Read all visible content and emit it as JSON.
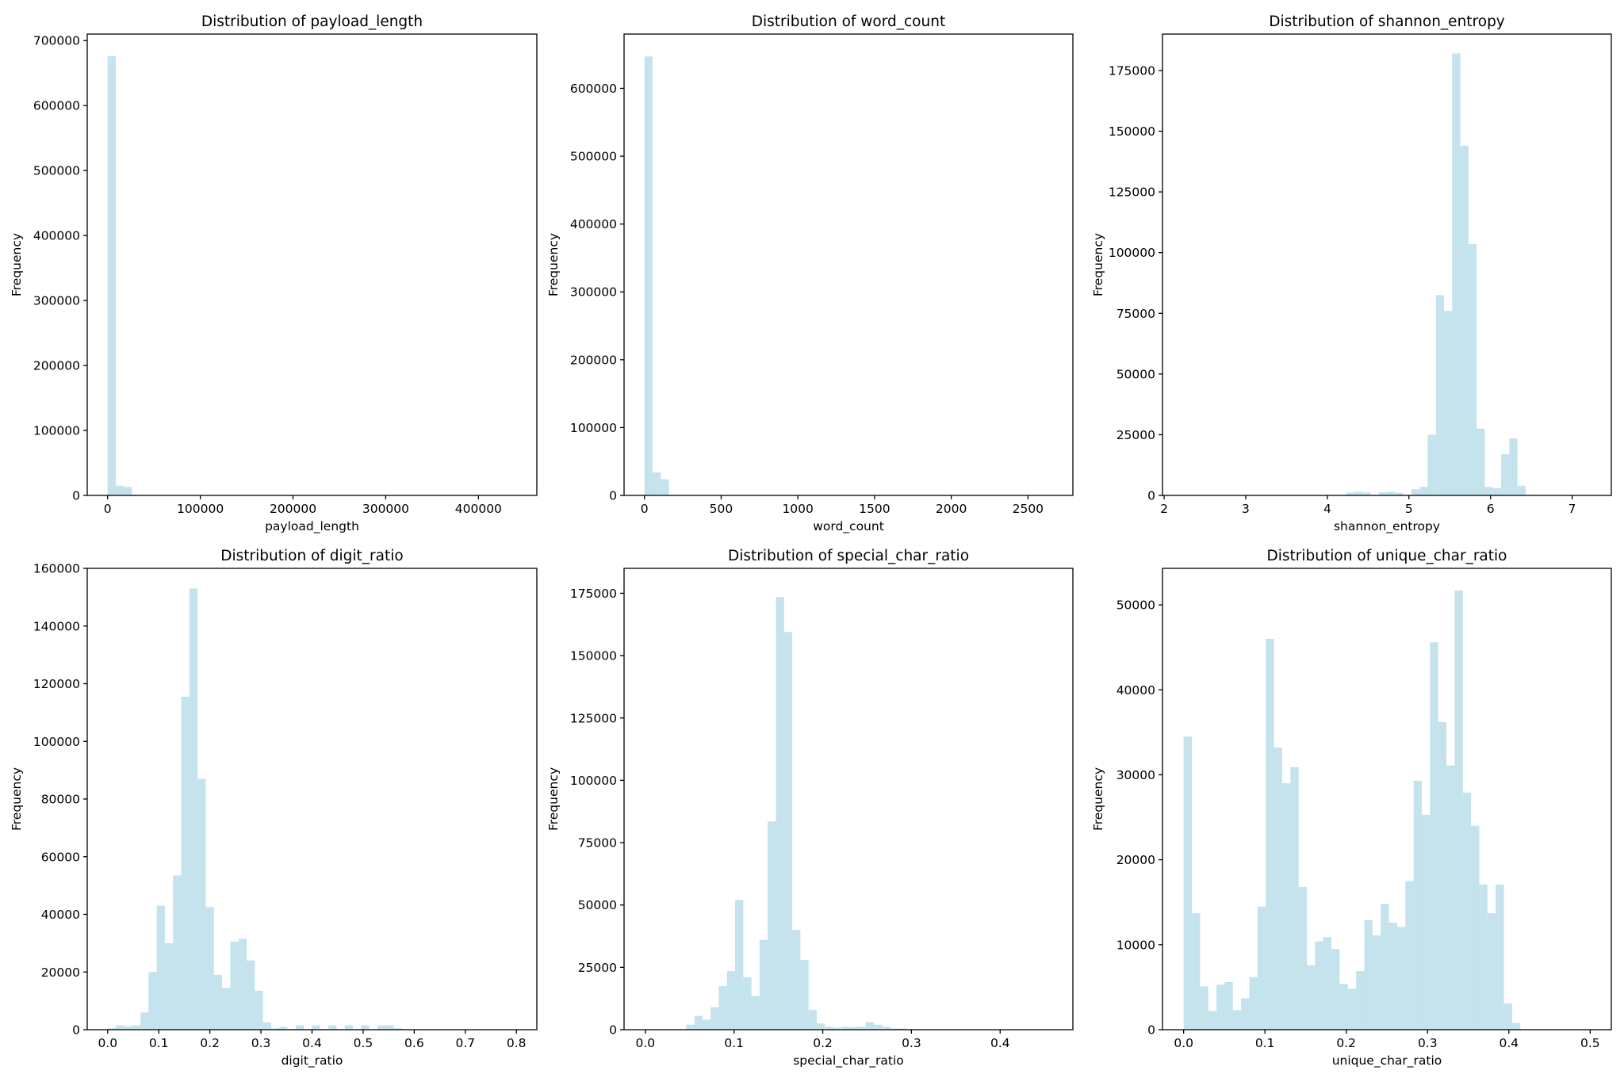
{
  "style": {
    "bar_color": "#add8e6",
    "bar_opacity": 0.72
  },
  "chart_data": [
    {
      "type": "bar",
      "title": "Distribution of payload_length",
      "xlabel": "payload_length",
      "ylabel": "Frequency",
      "xlim": [
        -22000,
        463000
      ],
      "ylim": [
        0,
        710000
      ],
      "xticks": [
        0,
        100000,
        200000,
        300000,
        400000
      ],
      "xtick_labels": [
        "0",
        "100000",
        "200000",
        "300000",
        "400000"
      ],
      "yticks": [
        0,
        100000,
        200000,
        300000,
        400000,
        500000,
        600000,
        700000
      ],
      "ytick_labels": [
        "0",
        "100000",
        "200000",
        "300000",
        "400000",
        "500000",
        "600000",
        "700000"
      ],
      "bin_start": 0,
      "bin_width": 8800,
      "values": [
        676000,
        15000,
        13000,
        1200,
        700,
        500,
        400,
        300,
        250,
        200,
        150,
        120,
        100,
        90,
        80,
        70,
        60,
        50,
        40,
        40,
        30,
        30,
        30,
        20,
        20,
        20,
        20,
        10,
        10,
        10,
        10,
        10,
        10,
        10,
        10,
        10,
        10,
        10,
        10,
        10,
        10,
        10,
        10,
        10,
        10,
        10,
        10,
        10,
        10,
        10
      ]
    },
    {
      "type": "bar",
      "title": "Distribution of word_count",
      "xlabel": "word_count",
      "ylabel": "Frequency",
      "xlim": [
        -133,
        2793
      ],
      "ylim": [
        0,
        680000
      ],
      "xticks": [
        0,
        500,
        1000,
        1500,
        2000,
        2500
      ],
      "xtick_labels": [
        "0",
        "500",
        "1000",
        "1500",
        "2000",
        "2500"
      ],
      "yticks": [
        0,
        100000,
        200000,
        300000,
        400000,
        500000,
        600000
      ],
      "ytick_labels": [
        "0",
        "100000",
        "200000",
        "300000",
        "400000",
        "500000",
        "600000"
      ],
      "bin_start": 0,
      "bin_width": 53.2,
      "values": [
        647000,
        34000,
        24000,
        1000,
        600,
        400,
        300,
        250,
        200,
        150,
        120,
        100,
        80,
        70,
        60,
        50,
        40,
        30,
        30,
        30,
        20,
        20,
        20,
        20,
        10,
        10,
        10,
        10,
        10,
        10,
        10,
        10,
        10,
        10,
        10,
        10,
        10,
        10,
        10,
        10,
        10,
        10,
        10,
        10,
        10,
        10,
        10,
        10,
        10,
        10
      ]
    },
    {
      "type": "bar",
      "title": "Distribution of shannon_entropy",
      "xlabel": "shannon_entropy",
      "ylabel": "Frequency",
      "xlim": [
        1.98,
        7.48
      ],
      "ylim": [
        0,
        190000
      ],
      "xticks": [
        2,
        3,
        4,
        5,
        6,
        7
      ],
      "xtick_labels": [
        "2",
        "3",
        "4",
        "5",
        "6",
        "7"
      ],
      "yticks": [
        0,
        25000,
        50000,
        75000,
        100000,
        125000,
        150000,
        175000
      ],
      "ytick_labels": [
        "0",
        "25000",
        "50000",
        "75000",
        "100000",
        "125000",
        "150000",
        "175000"
      ],
      "bin_start": 2.23,
      "bin_width": 0.1,
      "values": [
        50,
        0,
        0,
        50,
        0,
        0,
        0,
        0,
        0,
        50,
        0,
        50,
        0,
        50,
        0,
        50,
        0,
        50,
        0,
        50,
        1200,
        1500,
        1200,
        100,
        1300,
        1500,
        1100,
        200,
        2500,
        3500,
        25000,
        82500,
        76000,
        182000,
        144000,
        103500,
        27500,
        3500,
        3000,
        17000,
        23500,
        4000,
        100,
        50,
        50,
        50,
        50,
        50,
        50,
        50
      ]
    },
    {
      "type": "bar",
      "title": "Distribution of digit_ratio",
      "xlabel": "digit_ratio",
      "ylabel": "Frequency",
      "xlim": [
        -0.04,
        0.84
      ],
      "ylim": [
        0,
        160000
      ],
      "xticks": [
        0.0,
        0.1,
        0.2,
        0.3,
        0.4,
        0.5,
        0.6,
        0.7,
        0.8
      ],
      "xtick_labels": [
        "0.0",
        "0.1",
        "0.2",
        "0.3",
        "0.4",
        "0.5",
        "0.6",
        "0.7",
        "0.8"
      ],
      "yticks": [
        0,
        20000,
        40000,
        60000,
        80000,
        100000,
        120000,
        140000,
        160000
      ],
      "ytick_labels": [
        "0",
        "20000",
        "40000",
        "60000",
        "80000",
        "100000",
        "120000",
        "140000",
        "160000"
      ],
      "bin_start": 0,
      "bin_width": 0.016,
      "values": [
        500,
        1500,
        1200,
        1500,
        6000,
        20000,
        43000,
        30000,
        53500,
        115500,
        153000,
        87000,
        42500,
        19000,
        14500,
        30500,
        31500,
        24000,
        13500,
        2500,
        500,
        1000,
        200,
        1500,
        200,
        1500,
        200,
        1500,
        200,
        1500,
        200,
        1500,
        200,
        1500,
        1500,
        500,
        200,
        100,
        100,
        100,
        100,
        100,
        50,
        50,
        50,
        50,
        50,
        50,
        50,
        50
      ]
    },
    {
      "type": "bar",
      "title": "Distribution of special_char_ratio",
      "xlabel": "special_char_ratio",
      "ylabel": "Frequency",
      "xlim": [
        -0.024,
        0.482
      ],
      "ylim": [
        0,
        185000
      ],
      "xticks": [
        0.0,
        0.1,
        0.2,
        0.3,
        0.4
      ],
      "xtick_labels": [
        "0.0",
        "0.1",
        "0.2",
        "0.3",
        "0.4"
      ],
      "yticks": [
        0,
        25000,
        50000,
        75000,
        100000,
        125000,
        150000,
        175000
      ],
      "ytick_labels": [
        "0",
        "25000",
        "50000",
        "75000",
        "100000",
        "125000",
        "150000",
        "175000"
      ],
      "bin_start": 0,
      "bin_width": 0.0092,
      "values": [
        100,
        100,
        100,
        100,
        200,
        2000,
        5500,
        4000,
        9000,
        17500,
        23500,
        52000,
        21000,
        13500,
        36000,
        83500,
        173500,
        159500,
        40000,
        28000,
        8000,
        2500,
        1200,
        800,
        1200,
        1000,
        1200,
        3000,
        2000,
        1200,
        500,
        500,
        200,
        200,
        100,
        100,
        100,
        100,
        100,
        100,
        100,
        50,
        50,
        50,
        50,
        50,
        50,
        50,
        50,
        50
      ]
    },
    {
      "type": "bar",
      "title": "Distribution of unique_char_ratio",
      "xlabel": "unique_char_ratio",
      "ylabel": "Frequency",
      "xlim": [
        -0.026,
        0.526
      ],
      "ylim": [
        0,
        54300
      ],
      "xticks": [
        0.0,
        0.1,
        0.2,
        0.3,
        0.4,
        0.5
      ],
      "xtick_labels": [
        "0.0",
        "0.1",
        "0.2",
        "0.3",
        "0.4",
        "0.5"
      ],
      "yticks": [
        0,
        10000,
        20000,
        30000,
        40000,
        50000
      ],
      "ytick_labels": [
        "0",
        "10000",
        "20000",
        "30000",
        "40000",
        "50000"
      ],
      "bin_start": 0,
      "bin_width": 0.0101,
      "values": [
        34500,
        13700,
        5100,
        2200,
        5300,
        5600,
        2300,
        3700,
        6200,
        14500,
        46000,
        33200,
        29000,
        30900,
        16800,
        7600,
        10400,
        10900,
        9500,
        5400,
        4800,
        6900,
        12900,
        11100,
        14800,
        12600,
        12100,
        17500,
        29300,
        25300,
        45600,
        36200,
        31100,
        51700,
        27900,
        24000,
        17100,
        13700,
        17100,
        3100,
        800,
        50,
        30,
        20,
        10,
        10,
        10,
        10,
        10,
        10
      ]
    }
  ]
}
